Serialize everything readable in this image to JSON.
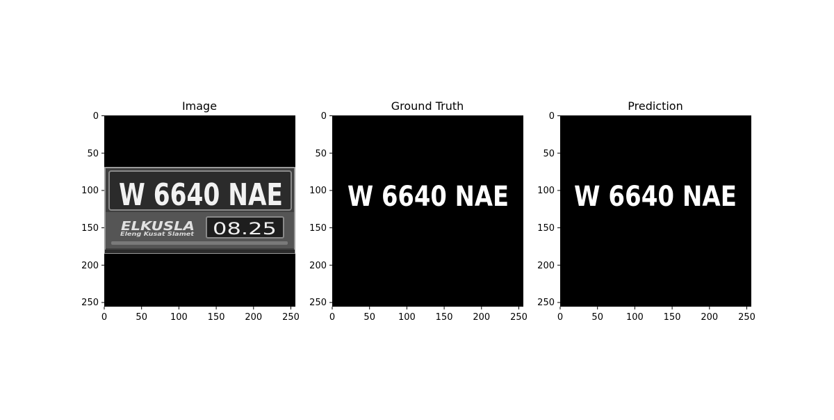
{
  "panels": [
    {
      "id": "image",
      "title": "Image",
      "x_ticks": [
        "0",
        "50",
        "100",
        "150",
        "200",
        "250"
      ],
      "y_ticks": [
        "0",
        "50",
        "100",
        "150",
        "200",
        "250"
      ],
      "plate": {
        "number": "W 6640 NAE",
        "brand": "ELKUSLA",
        "tagline": "Eleng Kusat Slamet",
        "expiry": "08.25"
      }
    },
    {
      "id": "ground-truth",
      "title": "Ground Truth",
      "x_ticks": [
        "0",
        "50",
        "100",
        "150",
        "200",
        "250"
      ],
      "y_ticks": [
        "0",
        "50",
        "100",
        "150",
        "200",
        "250"
      ],
      "mask_text": "W 6640 NAE"
    },
    {
      "id": "prediction",
      "title": "Prediction",
      "x_ticks": [
        "0",
        "50",
        "100",
        "150",
        "200",
        "250"
      ],
      "y_ticks": [
        "0",
        "50",
        "100",
        "150",
        "200",
        "250"
      ],
      "mask_text": "W 6640 NAE"
    }
  ],
  "colors": {
    "background": "#000000",
    "mask": "#ffffff",
    "plate_body": "#4a4a4a",
    "plate_text": "#f2f2f2"
  }
}
